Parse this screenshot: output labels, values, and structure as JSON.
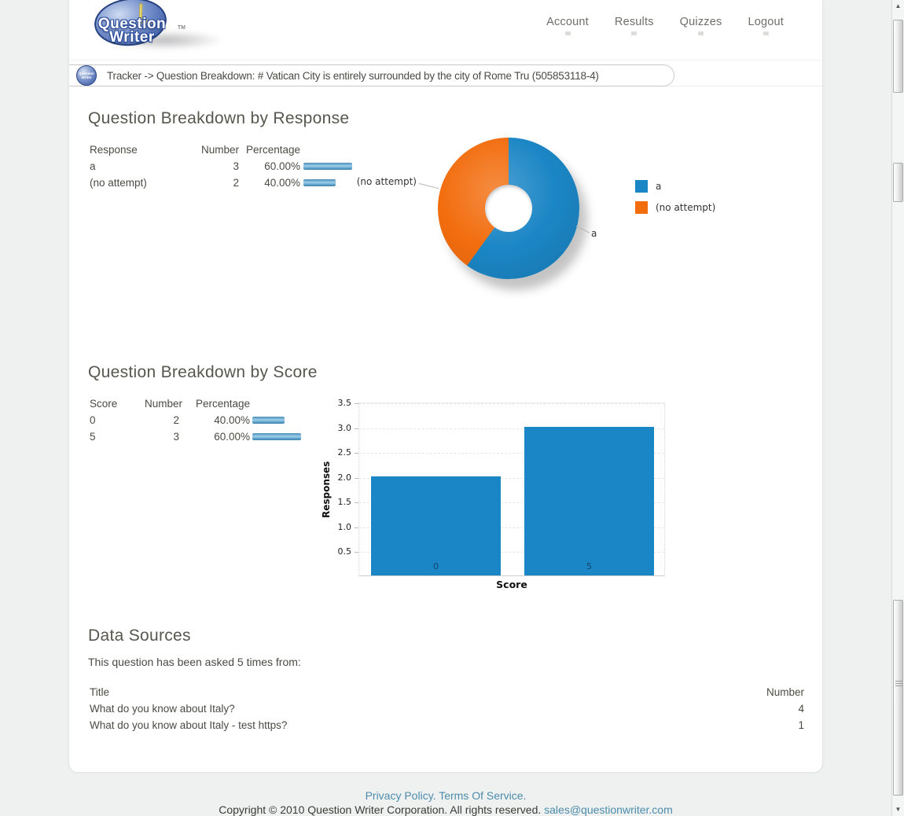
{
  "logo": {
    "line1": "Question",
    "line2": "Writer",
    "tm": "TM"
  },
  "nav": {
    "items": [
      {
        "label": "Account"
      },
      {
        "label": "Results"
      },
      {
        "label": "Quizzes"
      },
      {
        "label": "Logout"
      }
    ]
  },
  "breadcrumb": {
    "text": "Tracker -> Question Breakdown: # Vatican City is entirely surrounded by the city of Rome Tru (505853118-4)"
  },
  "response_section": {
    "title": "Question Breakdown by Response",
    "table": {
      "headers": [
        "Response",
        "Number",
        "Percentage"
      ],
      "rows": [
        {
          "label": "a",
          "number": "3",
          "percentage": "60.00%",
          "pct": 60
        },
        {
          "label": "(no attempt)",
          "number": "2",
          "percentage": "40.00%",
          "pct": 40
        }
      ]
    }
  },
  "score_section": {
    "title": "Question Breakdown by Score",
    "table": {
      "headers": [
        "Score",
        "Number",
        "Percentage"
      ],
      "rows": [
        {
          "label": "0",
          "number": "2",
          "percentage": "40.00%",
          "pct": 40
        },
        {
          "label": "5",
          "number": "3",
          "percentage": "60.00%",
          "pct": 60
        }
      ]
    }
  },
  "data_sources": {
    "title": "Data Sources",
    "subtitle": "This question has been asked 5 times from:",
    "table": {
      "headers": [
        "Title",
        "Number"
      ],
      "rows": [
        {
          "title": "What do you know about Italy?",
          "number": "4"
        },
        {
          "title": "What do you know about Italy - test https?",
          "number": "1"
        }
      ]
    }
  },
  "footer": {
    "links": [
      {
        "label": "Privacy Policy."
      },
      {
        "label": "Terms Of Service."
      }
    ],
    "copyright_prefix": "Copyright © 2010 Question Writer Corporation. All rights reserved.",
    "email": "sales@questionwriter.com"
  },
  "colors": {
    "accent_blue": "#1b86c5",
    "accent_orange": "#f26d0e",
    "link_blue": "#4c8cab"
  },
  "chart_data": [
    {
      "type": "pie",
      "donut": true,
      "labels": [
        "a",
        "(no attempt)"
      ],
      "values": [
        60,
        40
      ],
      "colors": [
        "#1b86c5",
        "#f26d0e"
      ],
      "legend_position": "right",
      "callouts": [
        {
          "label": "(no attempt)",
          "side": "left"
        },
        {
          "label": "a",
          "side": "right"
        }
      ]
    },
    {
      "type": "bar",
      "categories": [
        "0",
        "5"
      ],
      "values": [
        2,
        3
      ],
      "xlabel": "Score",
      "ylabel": "Responses",
      "ylim": [
        0,
        3.5
      ],
      "ytick_step": 0.5,
      "bar_color": "#1b86c5",
      "grid": true
    }
  ]
}
